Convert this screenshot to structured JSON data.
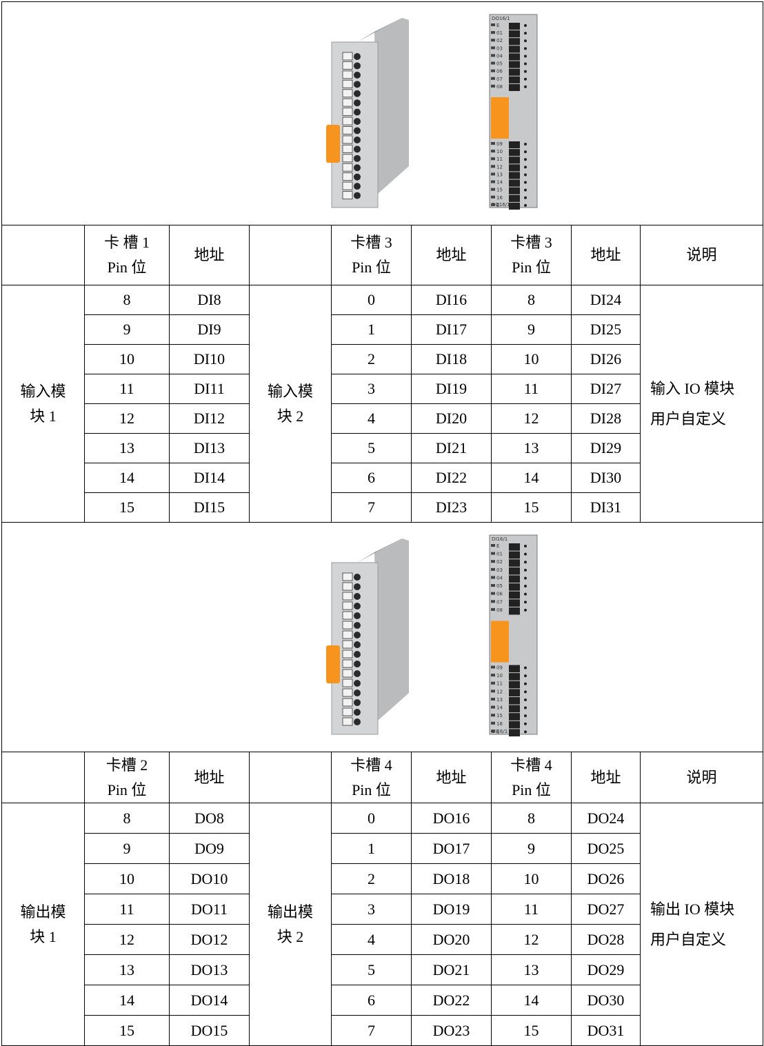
{
  "sections": [
    {
      "image": {
        "module_label_top": "DO16/1",
        "module_label_bottom": "DO16/1",
        "pins_top": [
          "E",
          "01",
          "02",
          "03",
          "04",
          "05",
          "06",
          "07",
          "08"
        ],
        "pins_bottom": [
          "09",
          "10",
          "11",
          "12",
          "13",
          "14",
          "15",
          "16",
          "E"
        ]
      },
      "header": [
        [
          "卡 槽 1",
          "Pin 位"
        ],
        [
          "地址"
        ],
        [
          "卡槽 3",
          "Pin 位"
        ],
        [
          "地址"
        ],
        [
          "卡槽 3",
          "Pin 位"
        ],
        [
          "地址"
        ],
        [
          "说明"
        ]
      ],
      "group1": [
        "输入模",
        "块 1"
      ],
      "group2": [
        "输入模",
        "块 2"
      ],
      "rows": [
        [
          "8",
          "DI8",
          "0",
          "DI16",
          "8",
          "DI24"
        ],
        [
          "9",
          "DI9",
          "1",
          "DI17",
          "9",
          "DI25"
        ],
        [
          "10",
          "DI10",
          "2",
          "DI18",
          "10",
          "DI26"
        ],
        [
          "11",
          "DI11",
          "3",
          "DI19",
          "11",
          "DI27"
        ],
        [
          "12",
          "DI12",
          "4",
          "DI20",
          "12",
          "DI28"
        ],
        [
          "13",
          "DI13",
          "5",
          "DI21",
          "13",
          "DI29"
        ],
        [
          "14",
          "DI14",
          "6",
          "DI22",
          "14",
          "DI30"
        ],
        [
          "15",
          "DI15",
          "7",
          "DI23",
          "15",
          "DI31"
        ]
      ],
      "note": [
        "输入 IO 模块",
        "用户自定义"
      ]
    },
    {
      "image": {
        "module_label_top": "DI16/1",
        "module_label_bottom": "DI16/1",
        "pins_top": [
          "E",
          "01",
          "02",
          "03",
          "04",
          "05",
          "06",
          "07",
          "08"
        ],
        "pins_bottom": [
          "09",
          "10",
          "11",
          "12",
          "13",
          "14",
          "15",
          "16",
          "E"
        ]
      },
      "header": [
        [
          "卡槽 2",
          "Pin 位"
        ],
        [
          "地址"
        ],
        [
          "卡槽 4",
          "Pin 位"
        ],
        [
          "地址"
        ],
        [
          "卡槽 4",
          "Pin 位"
        ],
        [
          "地址"
        ],
        [
          "说明"
        ]
      ],
      "group1": [
        "输出模",
        "块 1"
      ],
      "group2": [
        "输出模",
        "块 2"
      ],
      "rows": [
        [
          "8",
          "DO8",
          "0",
          "DO16",
          "8",
          "DO24"
        ],
        [
          "9",
          "DO9",
          "1",
          "DO17",
          "9",
          "DO25"
        ],
        [
          "10",
          "DO10",
          "2",
          "DO18",
          "10",
          "DO26"
        ],
        [
          "11",
          "DO11",
          "3",
          "DO19",
          "11",
          "DO27"
        ],
        [
          "12",
          "DO12",
          "4",
          "DO20",
          "12",
          "DO28"
        ],
        [
          "13",
          "DO13",
          "5",
          "DO21",
          "13",
          "DO29"
        ],
        [
          "14",
          "DO14",
          "6",
          "DO22",
          "14",
          "DO30"
        ],
        [
          "15",
          "DO15",
          "7",
          "DO23",
          "15",
          "DO31"
        ]
      ],
      "note": [
        "输出 IO 模块",
        "用户自定义"
      ]
    }
  ]
}
